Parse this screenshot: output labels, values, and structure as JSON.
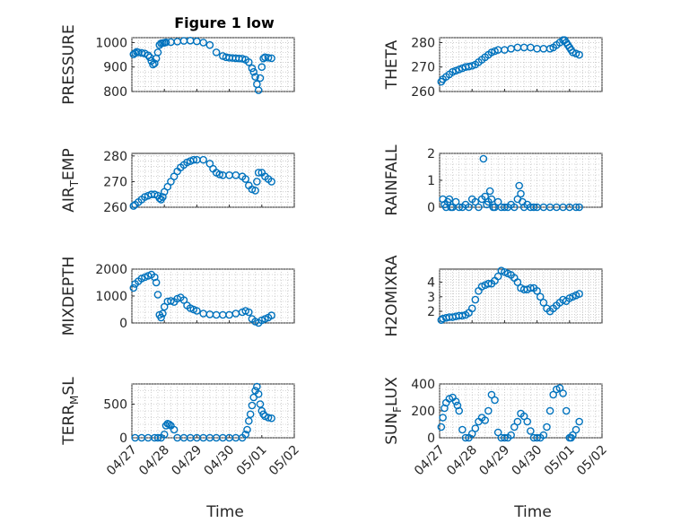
{
  "title": "Figure 1 low",
  "marker_color": "#0072BD",
  "xlabel": "Time",
  "x_ticks": [
    "04/27",
    "04/28",
    "04/29",
    "04/30",
    "05/01",
    "05/02"
  ],
  "chart_data": [
    {
      "type": "scatter",
      "ylabel": "PRESSURE",
      "ylabel_sub": "",
      "ylim": [
        800,
        1020
      ],
      "yticks": [
        800,
        900,
        1000
      ],
      "xlim": [
        0,
        5
      ],
      "x": [
        0.05,
        0.1,
        0.15,
        0.2,
        0.3,
        0.4,
        0.5,
        0.55,
        0.6,
        0.65,
        0.7,
        0.75,
        0.8,
        0.85,
        0.9,
        0.95,
        1.0,
        1.05,
        1.2,
        1.4,
        1.6,
        1.8,
        2.0,
        2.2,
        2.4,
        2.6,
        2.8,
        2.9,
        3.0,
        3.1,
        3.2,
        3.3,
        3.4,
        3.5,
        3.6,
        3.7,
        3.75,
        3.8,
        3.85,
        3.9,
        3.95,
        4.0,
        4.05,
        4.1,
        4.2,
        4.3
      ],
      "y": [
        952,
        957,
        962,
        960,
        958,
        955,
        948,
        940,
        925,
        910,
        915,
        935,
        960,
        990,
        997,
        998,
        999,
        1001,
        1002,
        1004,
        1007,
        1008,
        1005,
        1000,
        990,
        960,
        945,
        940,
        938,
        937,
        936,
        935,
        934,
        930,
        920,
        895,
        880,
        860,
        830,
        805,
        855,
        900,
        935,
        940,
        938,
        936
      ]
    },
    {
      "type": "scatter",
      "ylabel": "THETA",
      "ylabel_sub": "",
      "ylim": [
        260,
        282
      ],
      "yticks": [
        260,
        270,
        280
      ],
      "xlim": [
        0,
        5
      ],
      "x": [
        0.05,
        0.1,
        0.2,
        0.3,
        0.4,
        0.5,
        0.6,
        0.7,
        0.8,
        0.9,
        1.0,
        1.1,
        1.2,
        1.3,
        1.4,
        1.5,
        1.6,
        1.7,
        1.8,
        2.0,
        2.2,
        2.4,
        2.6,
        2.8,
        3.0,
        3.2,
        3.4,
        3.5,
        3.6,
        3.7,
        3.8,
        3.85,
        3.9,
        3.95,
        4.0,
        4.05,
        4.1,
        4.2,
        4.3
      ],
      "y": [
        264,
        265,
        266,
        267,
        268,
        268.5,
        269,
        269.5,
        270,
        270.2,
        270.5,
        271,
        272,
        273,
        274,
        275,
        276,
        276.5,
        277,
        277,
        277.5,
        278,
        278,
        278,
        277.5,
        277.5,
        277.5,
        278,
        279,
        280,
        281,
        281,
        280,
        279,
        278,
        277,
        276,
        275.5,
        275
      ]
    },
    {
      "type": "scatter",
      "ylabel": "AIR",
      "ylabel_sub": "T",
      "ylabel_suffix": "EMP",
      "ylim": [
        260,
        281
      ],
      "yticks": [
        260,
        270,
        280
      ],
      "xlim": [
        0,
        5
      ],
      "x": [
        0.05,
        0.1,
        0.2,
        0.3,
        0.4,
        0.5,
        0.6,
        0.7,
        0.8,
        0.85,
        0.9,
        0.95,
        1.0,
        1.1,
        1.2,
        1.3,
        1.4,
        1.5,
        1.6,
        1.7,
        1.8,
        1.9,
        2.0,
        2.2,
        2.4,
        2.5,
        2.6,
        2.7,
        2.8,
        3.0,
        3.2,
        3.4,
        3.5,
        3.6,
        3.7,
        3.8,
        3.85,
        3.9,
        4.0,
        4.1,
        4.2,
        4.3
      ],
      "y": [
        260.5,
        261,
        262,
        263,
        264,
        264.5,
        265,
        265,
        264.5,
        263.5,
        263,
        264,
        266,
        268,
        270,
        272,
        274,
        275.5,
        276.5,
        277.5,
        278,
        278.5,
        278.5,
        278.5,
        277,
        275,
        273.5,
        272.8,
        272.5,
        272.5,
        272.5,
        272,
        271,
        268.5,
        267,
        266.5,
        270,
        273.5,
        273.5,
        272,
        271,
        270
      ]
    },
    {
      "type": "scatter",
      "ylabel": "RAINFALL",
      "ylabel_sub": "",
      "ylim": [
        0,
        2
      ],
      "yticks": [
        0,
        1,
        2
      ],
      "xlim": [
        0,
        5
      ],
      "x": [
        0.1,
        0.15,
        0.2,
        0.25,
        0.3,
        0.35,
        0.4,
        0.5,
        0.6,
        0.7,
        0.8,
        0.9,
        1.0,
        1.1,
        1.2,
        1.3,
        1.35,
        1.4,
        1.45,
        1.5,
        1.55,
        1.6,
        1.65,
        1.7,
        1.8,
        1.9,
        2.0,
        2.1,
        2.2,
        2.3,
        2.4,
        2.45,
        2.5,
        2.55,
        2.6,
        2.7,
        2.8,
        2.9,
        3.0,
        3.2,
        3.4,
        3.6,
        3.8,
        4.0,
        4.2,
        4.3
      ],
      "y": [
        0.3,
        0.1,
        0.0,
        0.2,
        0.3,
        0.0,
        0.0,
        0.2,
        0.0,
        0.0,
        0.1,
        0.0,
        0.3,
        0.2,
        0.0,
        0.3,
        1.8,
        0.4,
        0.1,
        0.2,
        0.6,
        0.3,
        0.0,
        0.0,
        0.2,
        0.0,
        0.0,
        0.0,
        0.1,
        0.0,
        0.3,
        0.8,
        0.5,
        0.2,
        0.0,
        0.1,
        0.0,
        0.0,
        0.0,
        0.0,
        0.0,
        0.0,
        0.0,
        0.0,
        0.0,
        0.0
      ]
    },
    {
      "type": "scatter",
      "ylabel": "MIXDEPTH",
      "ylabel_sub": "",
      "ylim": [
        0,
        2000
      ],
      "yticks": [
        0,
        1000,
        2000
      ],
      "xlim": [
        0,
        5
      ],
      "x": [
        0.05,
        0.1,
        0.2,
        0.3,
        0.4,
        0.5,
        0.6,
        0.7,
        0.75,
        0.8,
        0.85,
        0.9,
        0.95,
        1.0,
        1.1,
        1.2,
        1.3,
        1.4,
        1.5,
        1.6,
        1.7,
        1.8,
        1.9,
        2.0,
        2.2,
        2.4,
        2.6,
        2.8,
        3.0,
        3.2,
        3.4,
        3.5,
        3.6,
        3.7,
        3.8,
        3.9,
        4.0,
        4.1,
        4.2,
        4.3
      ],
      "y": [
        1300,
        1450,
        1550,
        1650,
        1700,
        1750,
        1800,
        1700,
        1500,
        1050,
        300,
        200,
        350,
        600,
        800,
        820,
        780,
        900,
        950,
        850,
        650,
        550,
        500,
        450,
        350,
        320,
        300,
        300,
        300,
        350,
        400,
        450,
        400,
        150,
        50,
        0,
        100,
        150,
        200,
        280
      ]
    },
    {
      "type": "scatter",
      "ylabel": "H2OMIXRA",
      "ylabel_sub": "",
      "ylim": [
        1.2,
        4.9
      ],
      "yticks": [
        2,
        3,
        4
      ],
      "xlim": [
        0,
        5
      ],
      "x": [
        0.05,
        0.1,
        0.2,
        0.3,
        0.4,
        0.5,
        0.6,
        0.7,
        0.8,
        0.9,
        1.0,
        1.1,
        1.2,
        1.3,
        1.4,
        1.5,
        1.6,
        1.7,
        1.8,
        1.9,
        2.0,
        2.1,
        2.2,
        2.3,
        2.4,
        2.5,
        2.6,
        2.7,
        2.8,
        2.9,
        3.0,
        3.1,
        3.2,
        3.3,
        3.4,
        3.5,
        3.6,
        3.7,
        3.8,
        3.9,
        4.0,
        4.1,
        4.2,
        4.3
      ],
      "y": [
        1.4,
        1.5,
        1.55,
        1.6,
        1.6,
        1.65,
        1.7,
        1.7,
        1.75,
        1.9,
        2.2,
        2.8,
        3.4,
        3.7,
        3.8,
        3.9,
        3.9,
        4.1,
        4.4,
        4.8,
        4.7,
        4.6,
        4.5,
        4.3,
        4.0,
        3.6,
        3.5,
        3.5,
        3.6,
        3.6,
        3.4,
        3.0,
        2.6,
        2.2,
        2.0,
        2.2,
        2.4,
        2.6,
        2.8,
        2.7,
        2.9,
        3.0,
        3.1,
        3.2
      ]
    },
    {
      "type": "scatter",
      "ylabel": "TERR",
      "ylabel_sub": "M",
      "ylabel_suffix": "SL",
      "ylim": [
        0,
        800
      ],
      "yticks": [
        0,
        500
      ],
      "xlim": [
        0,
        5
      ],
      "x": [
        0.1,
        0.3,
        0.5,
        0.7,
        0.8,
        0.9,
        1.0,
        1.05,
        1.1,
        1.15,
        1.2,
        1.3,
        1.4,
        1.6,
        1.8,
        2.0,
        2.2,
        2.4,
        2.6,
        2.8,
        3.0,
        3.2,
        3.4,
        3.5,
        3.55,
        3.6,
        3.65,
        3.7,
        3.75,
        3.8,
        3.85,
        3.9,
        3.95,
        4.0,
        4.05,
        4.1,
        4.2,
        4.3
      ],
      "y": [
        0,
        0,
        0,
        0,
        0,
        0,
        50,
        180,
        210,
        200,
        180,
        120,
        0,
        0,
        0,
        0,
        0,
        0,
        0,
        0,
        0,
        0,
        0,
        50,
        120,
        250,
        350,
        480,
        600,
        700,
        760,
        650,
        500,
        400,
        350,
        320,
        300,
        290
      ]
    },
    {
      "type": "scatter",
      "ylabel": "SUN",
      "ylabel_sub": "F",
      "ylabel_suffix": "LUX",
      "ylim": [
        0,
        400
      ],
      "yticks": [
        0,
        200,
        400
      ],
      "xlim": [
        0,
        5
      ],
      "x": [
        0.05,
        0.1,
        0.15,
        0.2,
        0.3,
        0.4,
        0.5,
        0.55,
        0.6,
        0.7,
        0.8,
        0.9,
        1.0,
        1.1,
        1.2,
        1.3,
        1.4,
        1.5,
        1.6,
        1.7,
        1.8,
        1.9,
        2.0,
        2.1,
        2.2,
        2.3,
        2.4,
        2.5,
        2.6,
        2.7,
        2.8,
        2.9,
        3.0,
        3.1,
        3.2,
        3.3,
        3.4,
        3.5,
        3.6,
        3.7,
        3.8,
        3.9,
        4.0,
        4.05,
        4.1,
        4.2,
        4.3
      ],
      "y": [
        80,
        150,
        220,
        260,
        290,
        300,
        270,
        240,
        200,
        60,
        0,
        0,
        30,
        70,
        120,
        150,
        130,
        200,
        320,
        280,
        40,
        0,
        0,
        0,
        20,
        80,
        120,
        180,
        160,
        120,
        50,
        0,
        0,
        0,
        20,
        80,
        200,
        320,
        360,
        370,
        330,
        200,
        0,
        0,
        20,
        60,
        120
      ]
    }
  ]
}
